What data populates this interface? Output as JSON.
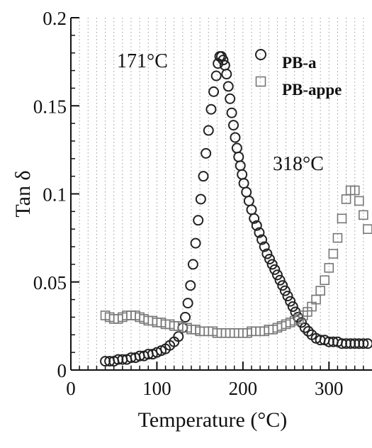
{
  "chart_data": {
    "type": "scatter",
    "title": "",
    "xlabel": "Temperature (°C)",
    "ylabel": "Tan δ",
    "xlim": [
      0,
      350
    ],
    "ylim": [
      0,
      0.2
    ],
    "x_ticks": [
      "0",
      "100",
      "200",
      "300"
    ],
    "y_ticks": [
      "0",
      "0.05",
      "0.1",
      "0.15",
      "0.2"
    ],
    "grid": true,
    "legend_position": "top-right",
    "annotations": [
      {
        "text": "171°C",
        "x": 171,
        "y": 0.178
      },
      {
        "text": "318°C",
        "x": 318,
        "y": 0.102
      }
    ],
    "series": [
      {
        "name": "PB-a",
        "marker": "circle",
        "color": "#222222",
        "x": [
          40,
          45,
          50,
          55,
          60,
          65,
          70,
          75,
          80,
          85,
          90,
          95,
          100,
          105,
          110,
          115,
          120,
          125,
          130,
          133,
          136,
          139,
          142,
          145,
          148,
          151,
          154,
          157,
          160,
          163,
          166,
          169,
          171,
          173,
          175,
          177,
          179,
          181,
          183,
          185,
          187,
          189,
          191,
          193,
          195,
          197,
          199,
          201,
          204,
          207,
          210,
          213,
          216,
          219,
          222,
          225,
          228,
          231,
          234,
          237,
          240,
          243,
          246,
          249,
          252,
          255,
          258,
          261,
          264,
          268,
          272,
          276,
          280,
          285,
          290,
          295,
          300,
          305,
          310,
          315,
          320,
          325,
          330,
          335,
          340,
          345
        ],
        "y": [
          0.005,
          0.005,
          0.005,
          0.006,
          0.006,
          0.006,
          0.007,
          0.007,
          0.008,
          0.008,
          0.009,
          0.009,
          0.01,
          0.011,
          0.012,
          0.014,
          0.016,
          0.019,
          0.024,
          0.03,
          0.038,
          0.048,
          0.06,
          0.072,
          0.085,
          0.097,
          0.11,
          0.123,
          0.136,
          0.148,
          0.158,
          0.167,
          0.174,
          0.178,
          0.178,
          0.176,
          0.173,
          0.168,
          0.161,
          0.154,
          0.146,
          0.139,
          0.132,
          0.126,
          0.121,
          0.116,
          0.111,
          0.106,
          0.101,
          0.096,
          0.091,
          0.086,
          0.082,
          0.078,
          0.074,
          0.07,
          0.066,
          0.063,
          0.06,
          0.057,
          0.054,
          0.051,
          0.048,
          0.045,
          0.042,
          0.039,
          0.036,
          0.033,
          0.03,
          0.027,
          0.024,
          0.022,
          0.02,
          0.018,
          0.017,
          0.017,
          0.016,
          0.016,
          0.016,
          0.015,
          0.015,
          0.015,
          0.015,
          0.015,
          0.015,
          0.015
        ]
      },
      {
        "name": "PB-appe",
        "marker": "square",
        "color": "#777777",
        "x": [
          40,
          45,
          50,
          55,
          60,
          65,
          70,
          75,
          80,
          85,
          90,
          95,
          100,
          105,
          110,
          115,
          120,
          125,
          130,
          135,
          140,
          145,
          150,
          155,
          160,
          165,
          170,
          175,
          180,
          185,
          190,
          195,
          200,
          205,
          210,
          215,
          220,
          225,
          230,
          235,
          240,
          245,
          250,
          255,
          260,
          265,
          270,
          275,
          280,
          285,
          290,
          295,
          300,
          305,
          310,
          315,
          320,
          325,
          330,
          335,
          340,
          345
        ],
        "y": [
          0.031,
          0.03,
          0.029,
          0.029,
          0.03,
          0.031,
          0.031,
          0.031,
          0.03,
          0.029,
          0.028,
          0.028,
          0.027,
          0.027,
          0.026,
          0.026,
          0.025,
          0.025,
          0.024,
          0.024,
          0.023,
          0.023,
          0.022,
          0.022,
          0.022,
          0.022,
          0.021,
          0.021,
          0.021,
          0.021,
          0.021,
          0.021,
          0.021,
          0.021,
          0.022,
          0.022,
          0.022,
          0.022,
          0.023,
          0.023,
          0.024,
          0.025,
          0.026,
          0.027,
          0.028,
          0.029,
          0.031,
          0.033,
          0.036,
          0.04,
          0.045,
          0.051,
          0.058,
          0.066,
          0.075,
          0.086,
          0.097,
          0.102,
          0.102,
          0.096,
          0.088,
          0.08
        ]
      }
    ]
  }
}
